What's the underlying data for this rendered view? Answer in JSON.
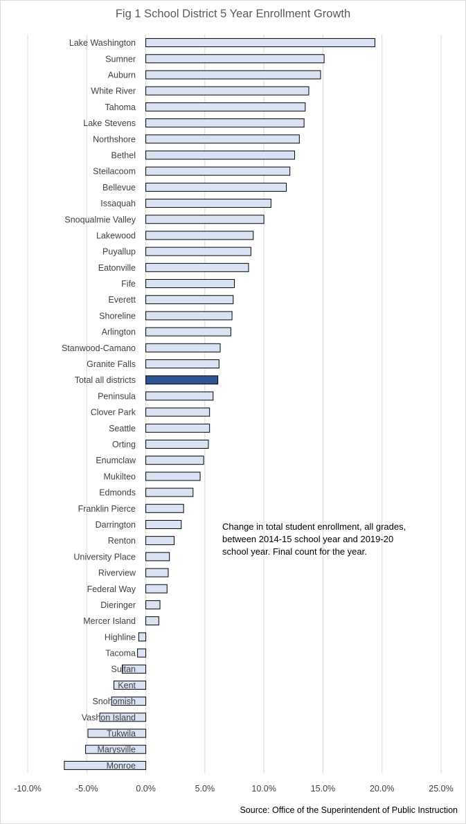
{
  "chart_data": {
    "type": "bar",
    "orientation": "horizontal",
    "title": "Fig 1 School District 5 Year Enrollment Growth",
    "xlim": [
      -0.1,
      0.25
    ],
    "xticks": [
      "-10.0%",
      "-5.0%",
      "0.0%",
      "5.0%",
      "10.0%",
      "15.0%",
      "20.0%",
      "25.0%"
    ],
    "grid": "vertical",
    "bar_color": "#dae3f3",
    "highlight_color": "#2f5597",
    "highlight_category": "Total all districts",
    "categories": [
      "Lake Washington",
      "Sumner",
      "Auburn",
      "White River",
      "Tahoma",
      "Lake Stevens",
      "Northshore",
      "Bethel",
      "Steilacoom",
      "Bellevue",
      "Issaquah",
      "Snoqualmie Valley",
      "Lakewood",
      "Puyallup",
      "Eatonville",
      "Fife",
      "Everett",
      "Shoreline",
      "Arlington",
      "Stanwood-Camano",
      "Granite Falls",
      "Total all districts",
      "Peninsula",
      "Clover Park",
      "Seattle",
      "Orting",
      "Enumclaw",
      "Mukilteo",
      "Edmonds",
      "Franklin Pierce",
      "Darrington",
      "Renton",
      "University Place",
      "Riverview",
      "Federal Way",
      "Dieringer",
      "Mercer Island",
      "Highline",
      "Tacoma",
      "Sultan",
      "Kent",
      "Snohomish",
      "Vashon Island",
      "Tukwila",
      "Marysville",
      "Monroe"
    ],
    "values": [
      0.194,
      0.151,
      0.148,
      0.138,
      0.135,
      0.134,
      0.13,
      0.126,
      0.122,
      0.119,
      0.106,
      0.1,
      0.091,
      0.089,
      0.087,
      0.075,
      0.074,
      0.073,
      0.072,
      0.063,
      0.062,
      0.061,
      0.057,
      0.054,
      0.054,
      0.053,
      0.049,
      0.046,
      0.04,
      0.032,
      0.03,
      0.024,
      0.02,
      0.019,
      0.018,
      0.012,
      0.011,
      -0.006,
      -0.007,
      -0.02,
      -0.027,
      -0.029,
      -0.039,
      -0.049,
      -0.051,
      -0.069
    ]
  },
  "annotation": "Change in total student enrollment,  all grades, between 2014-15 school year and 2019-20 school year. Final count for the year.",
  "source": "Source: Office of the Superintendent of Public Instruction"
}
